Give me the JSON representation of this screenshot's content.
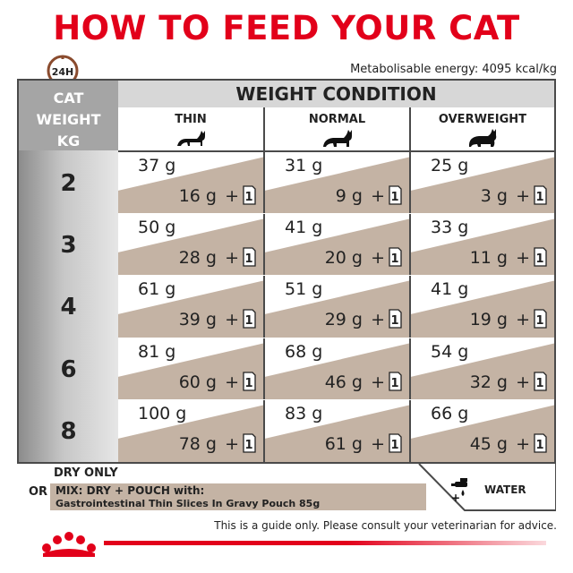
{
  "title": "HOW TO FEED YOUR CAT",
  "clock_label": "24H",
  "energy": "Metabolisable energy: 4095 kcal/kg",
  "weight_header": "WEIGHT CONDITION",
  "cat_weight_header": [
    "CAT",
    "WEIGHT",
    "KG"
  ],
  "columns": [
    {
      "label": "THIN",
      "icon": "thin-cat-icon"
    },
    {
      "label": "NORMAL",
      "icon": "normal-cat-icon"
    },
    {
      "label": "OVERWEIGHT",
      "icon": "overweight-cat-icon"
    }
  ],
  "rows": [
    {
      "weight": "2",
      "cells": [
        {
          "dry": "37 g",
          "mix": "16 g"
        },
        {
          "dry": "31 g",
          "mix": "9 g"
        },
        {
          "dry": "25 g",
          "mix": "3 g"
        }
      ]
    },
    {
      "weight": "3",
      "cells": [
        {
          "dry": "50 g",
          "mix": "28 g"
        },
        {
          "dry": "41 g",
          "mix": "20 g"
        },
        {
          "dry": "33 g",
          "mix": "11 g"
        }
      ]
    },
    {
      "weight": "4",
      "cells": [
        {
          "dry": "61 g",
          "mix": "39 g"
        },
        {
          "dry": "51 g",
          "mix": "29 g"
        },
        {
          "dry": "41 g",
          "mix": "19 g"
        }
      ]
    },
    {
      "weight": "6",
      "cells": [
        {
          "dry": "81 g",
          "mix": "60 g"
        },
        {
          "dry": "68 g",
          "mix": "46 g"
        },
        {
          "dry": "54 g",
          "mix": "32 g"
        }
      ]
    },
    {
      "weight": "8",
      "cells": [
        {
          "dry": "100 g",
          "mix": "78 g"
        },
        {
          "dry": "83 g",
          "mix": "61 g"
        },
        {
          "dry": "66 g",
          "mix": "45 g"
        }
      ]
    }
  ],
  "plus": "+",
  "pouch_count": "1",
  "legend": {
    "dry_only": "DRY ONLY",
    "or": "OR",
    "mix_line1": "MIX: DRY + POUCH with:",
    "mix_line2": "Gastrointestinal Thin Slices In Gravy Pouch 85g",
    "water": "WATER"
  },
  "disclaimer": "This is a guide only. Please consult your veterinarian for advice.",
  "colors": {
    "brand_red": "#e2001a",
    "band_brown": "#c4b3a4",
    "grey": "#a5a5a5"
  }
}
